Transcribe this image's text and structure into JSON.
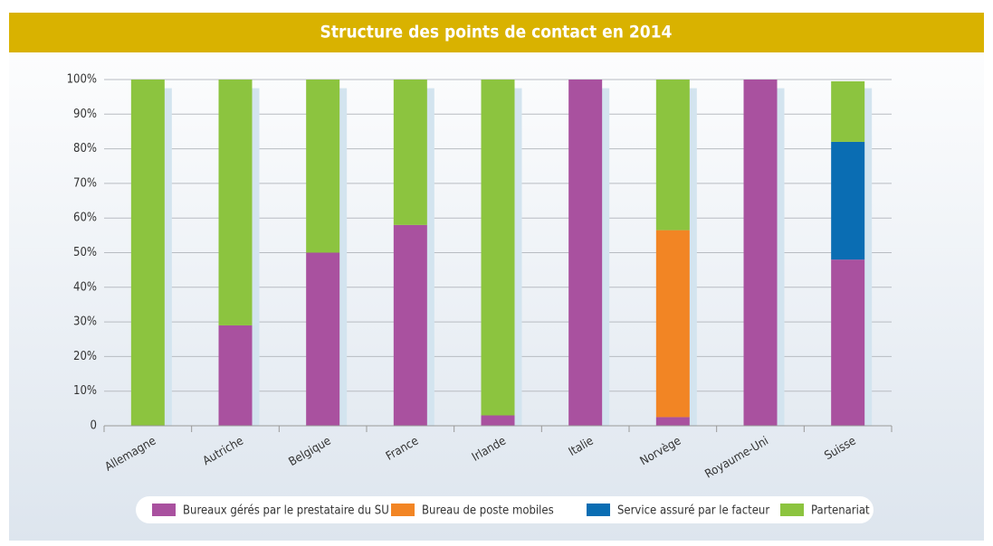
{
  "chart_data": {
    "type": "stacked_bar",
    "title": "Structure des points de contact en 2014",
    "categories": [
      "Allemagne",
      "Autriche",
      "Belgique",
      "France",
      "Irlande",
      "Italie",
      "Norvège",
      "Royaume-Uni",
      "Suisse"
    ],
    "series": [
      {
        "name": "Bureaux gérés par le prestataire du SU",
        "color": "#a9519f",
        "values": [
          0,
          29,
          50,
          58,
          3,
          100,
          2.5,
          100,
          48
        ]
      },
      {
        "name": "Bureau de poste mobiles",
        "color": "#f28524",
        "values": [
          0,
          0,
          0,
          0,
          0,
          0,
          54,
          0,
          0
        ]
      },
      {
        "name": "Service assuré par le facteur",
        "color": "#0a6db3",
        "values": [
          0,
          0,
          0,
          0,
          0,
          0,
          0,
          0,
          34
        ]
      },
      {
        "name": "Partenariat",
        "color": "#8cc43f",
        "values": [
          100,
          71,
          50,
          42,
          97,
          0,
          43.5,
          0,
          17.5
        ]
      }
    ],
    "ylim": [
      0,
      100
    ],
    "yticks": [
      0,
      {
        "value": 10,
        "label": "10%"
      },
      {
        "value": 20,
        "label": "20%"
      },
      {
        "value": 30,
        "label": "30%"
      },
      {
        "value": 40,
        "label": "40%"
      },
      {
        "value": 50,
        "label": "50%"
      },
      {
        "value": 60,
        "label": "60%"
      },
      {
        "value": 70,
        "label": "70%"
      },
      {
        "value": 80,
        "label": "80%"
      },
      {
        "value": 90,
        "label": "90%"
      },
      {
        "value": 100,
        "label": "100%"
      }
    ],
    "grid": true,
    "legend": "bottom"
  }
}
